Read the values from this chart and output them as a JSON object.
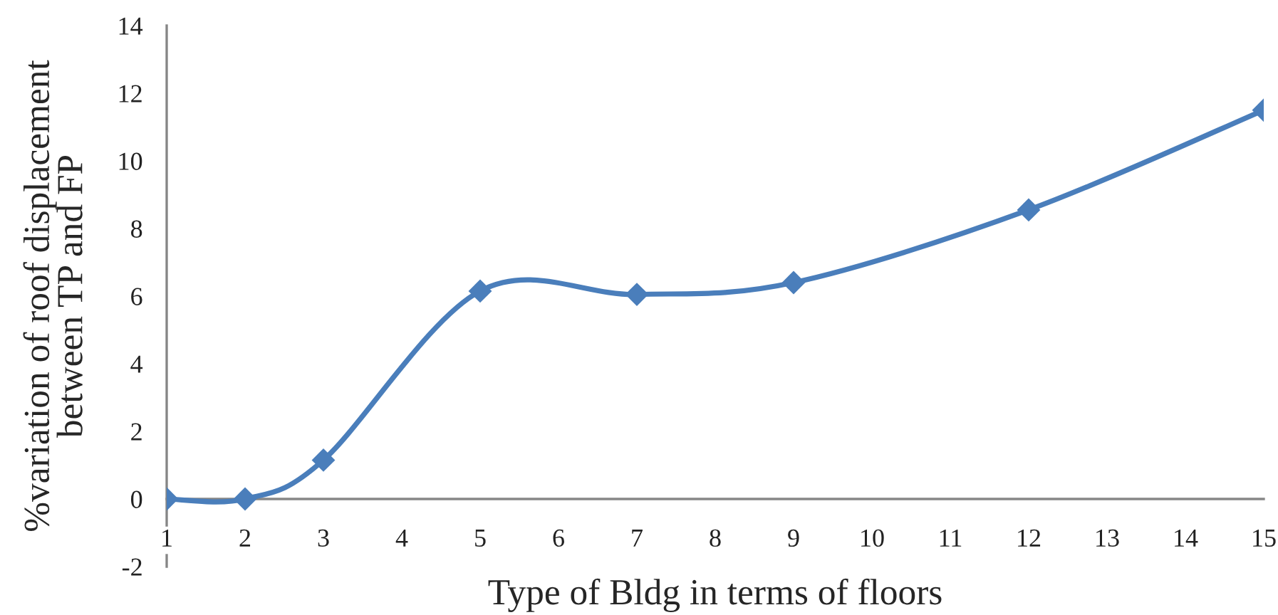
{
  "chart_data": {
    "type": "line",
    "xlabel": "Type of Bldg in terms of floors",
    "ylabel": "%variation of roof displacement\nbetween TP and FP",
    "x": [
      1,
      2,
      3,
      5,
      7,
      9,
      12,
      15
    ],
    "series": [
      {
        "color": "#4a7ebb",
        "values": [
          0,
          0,
          1.15,
          6.15,
          6.05,
          6.4,
          8.55,
          11.5
        ]
      }
    ],
    "xlim": [
      1,
      15
    ],
    "xticks": [
      1,
      2,
      3,
      4,
      5,
      6,
      7,
      8,
      9,
      10,
      11,
      12,
      13,
      14,
      15
    ],
    "ylim": [
      -2,
      14
    ],
    "yticks": [
      -2,
      0,
      2,
      4,
      6,
      8,
      10,
      12,
      14
    ],
    "grid": false,
    "marker": "diamond",
    "line_style": "solid"
  }
}
